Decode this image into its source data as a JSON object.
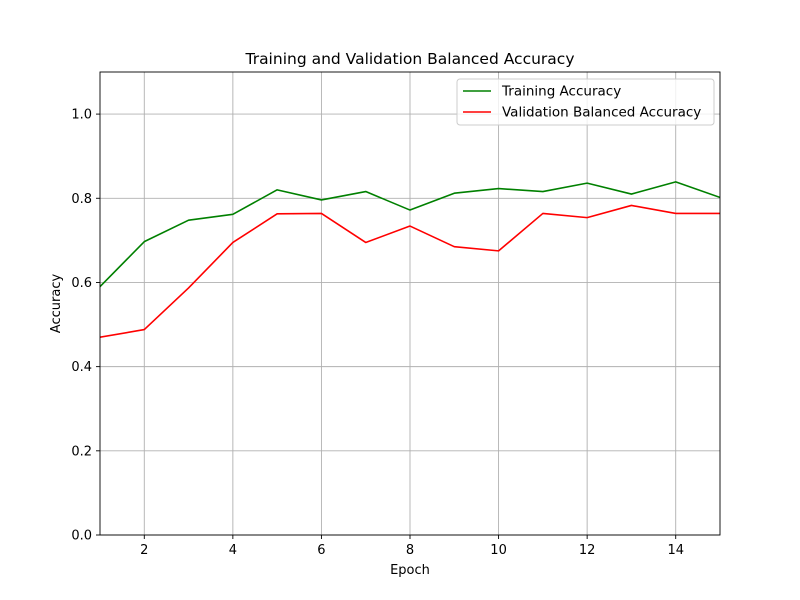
{
  "chart_data": {
    "type": "line",
    "title": "Training and Validation Balanced Accuracy",
    "xlabel": "Epoch",
    "ylabel": "Accuracy",
    "xlim": [
      1,
      15
    ],
    "ylim": [
      0,
      1.1
    ],
    "grid": true,
    "legend_position": "top-right",
    "x_ticks": [
      2,
      4,
      6,
      8,
      10,
      12,
      14
    ],
    "y_ticks": [
      0.0,
      0.2,
      0.4,
      0.6,
      0.8,
      1.0
    ],
    "x_tick_labels": [
      "2",
      "4",
      "6",
      "8",
      "10",
      "12",
      "14"
    ],
    "y_tick_labels": [
      "0.0",
      "0.2",
      "0.4",
      "0.6",
      "0.8",
      "1.0"
    ],
    "x": [
      1,
      2,
      3,
      4,
      5,
      6,
      7,
      8,
      9,
      10,
      11,
      12,
      13,
      14,
      15
    ],
    "series": [
      {
        "name": "Training Accuracy",
        "color": "#008000",
        "values": [
          0.59,
          0.697,
          0.748,
          0.762,
          0.82,
          0.796,
          0.816,
          0.772,
          0.812,
          0.823,
          0.816,
          0.836,
          0.81,
          0.839,
          0.802
        ]
      },
      {
        "name": "Validation Balanced Accuracy",
        "color": "#ff0000",
        "values": [
          0.47,
          0.488,
          0.587,
          0.695,
          0.763,
          0.764,
          0.695,
          0.734,
          0.685,
          0.675,
          0.764,
          0.754,
          0.783,
          0.764,
          0.764
        ]
      }
    ]
  }
}
